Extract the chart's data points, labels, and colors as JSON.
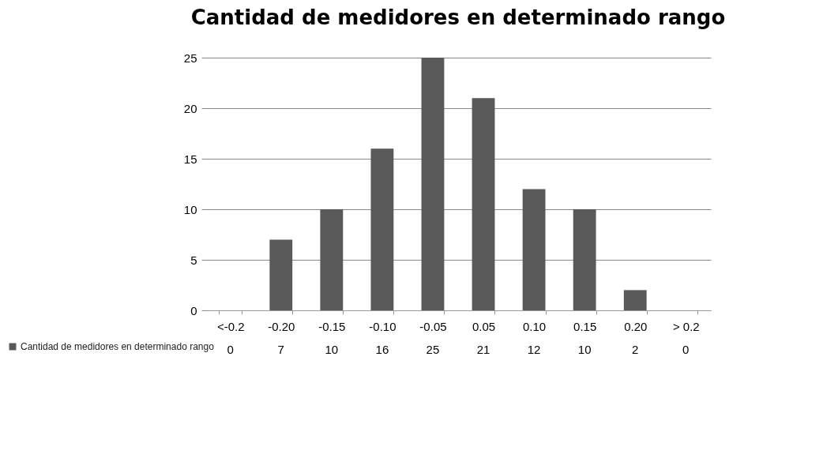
{
  "chart_data": {
    "type": "bar",
    "title": "Cantidad de medidores en determinado rango",
    "categories": [
      "<-0.2",
      "-0.20",
      "-0.15",
      "-0.10",
      "-0.05",
      "0.05",
      "0.10",
      "0.15",
      "0.20",
      "> 0.2"
    ],
    "series": [
      {
        "name": "Cantidad de medidores en determinado rango",
        "color": "#595959",
        "values": [
          0,
          7,
          10,
          16,
          25,
          21,
          12,
          10,
          2,
          0
        ]
      }
    ],
    "ylim": [
      0,
      25
    ],
    "yticks": [
      0,
      5,
      10,
      15,
      20,
      25
    ],
    "grid": "y",
    "legend": "bottom left",
    "data_labels": true
  }
}
